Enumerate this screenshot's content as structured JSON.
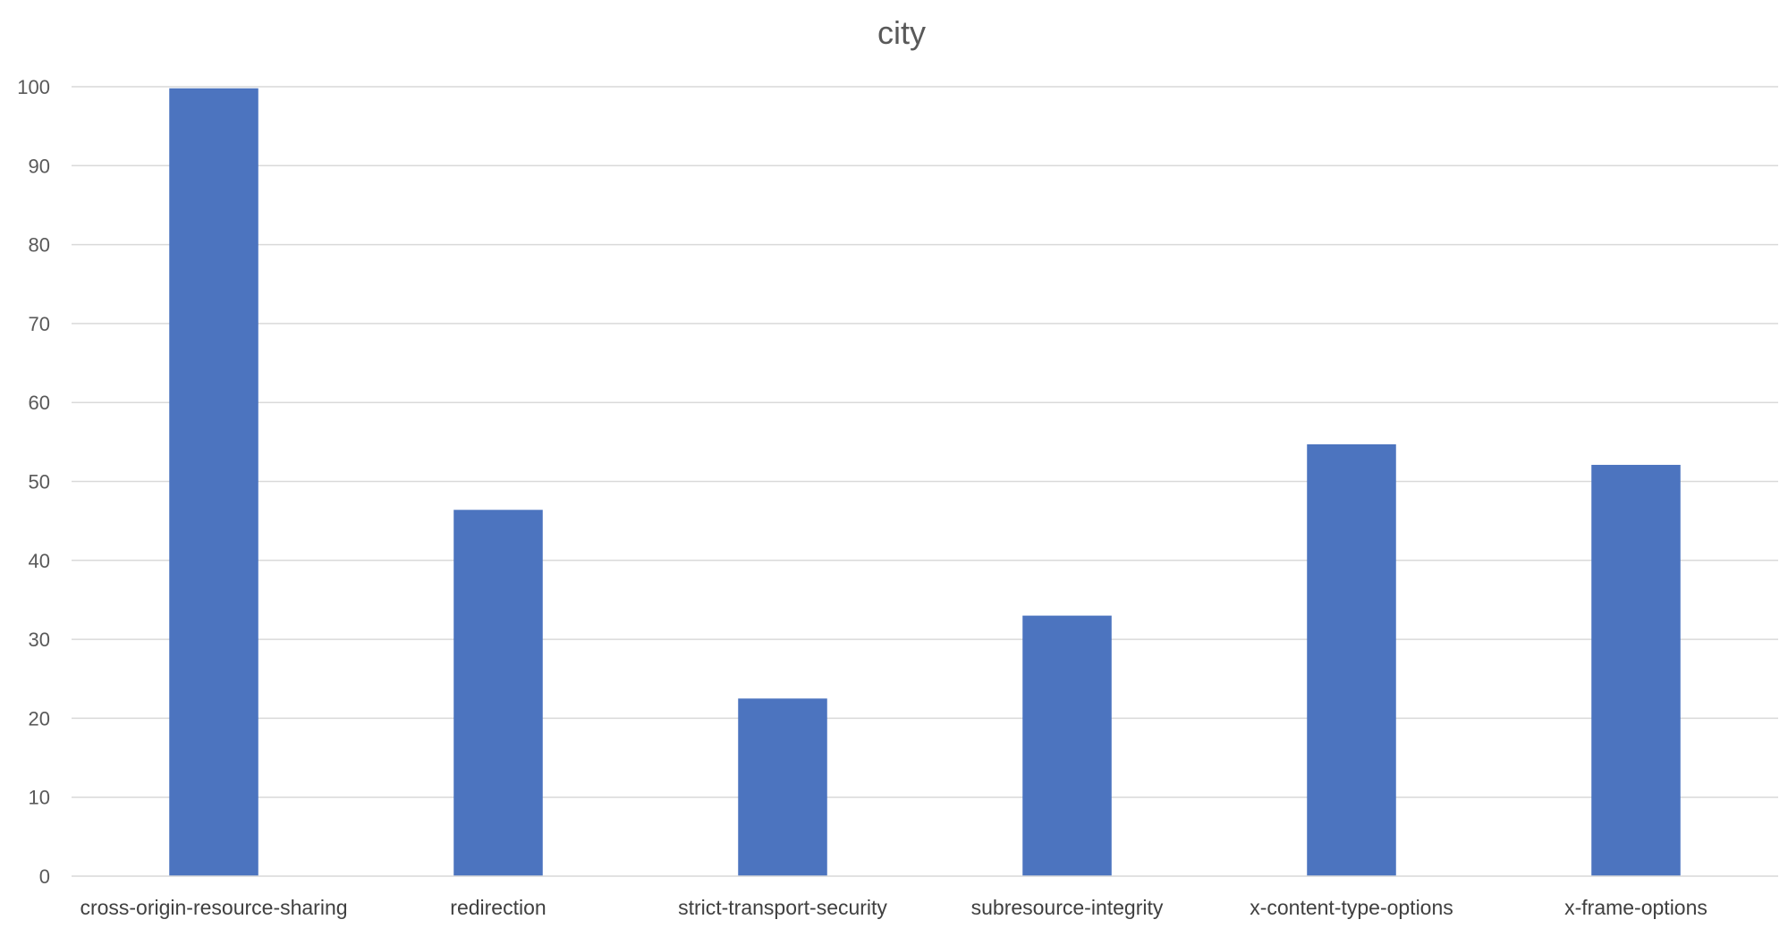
{
  "chart_data": {
    "type": "bar",
    "title": "city",
    "categories": [
      "cross-origin-resource-sharing",
      "redirection",
      "strict-transport-security",
      "subresource-integrity",
      "x-content-type-options",
      "x-frame-options"
    ],
    "values": [
      99.8,
      46.4,
      22.5,
      33.0,
      54.7,
      52.1
    ],
    "xlabel": "",
    "ylabel": "",
    "ylim": [
      0,
      100
    ],
    "yticks": [
      0,
      10,
      20,
      30,
      40,
      50,
      60,
      70,
      80,
      90,
      100
    ],
    "grid": true,
    "legend": "none",
    "colors": {
      "bar": "#4C74BF"
    }
  }
}
